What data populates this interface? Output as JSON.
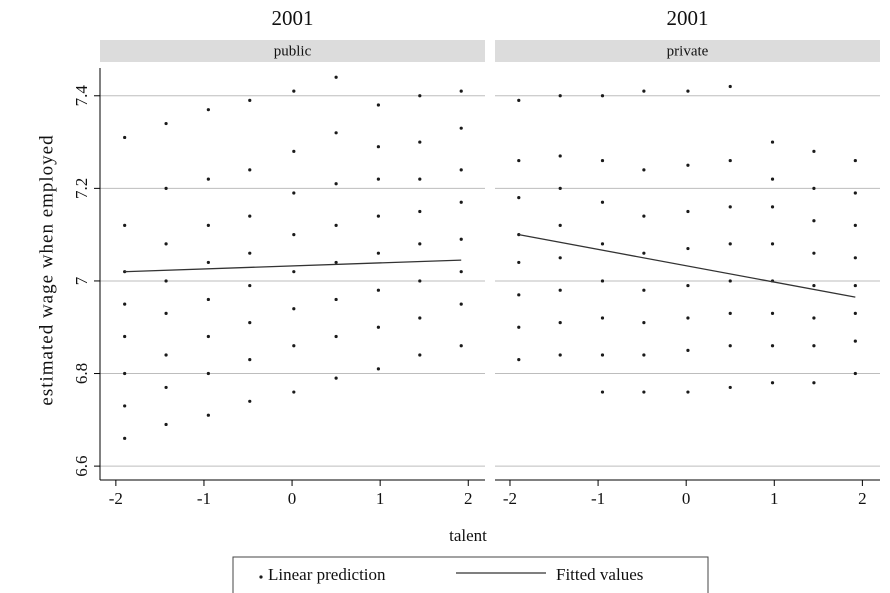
{
  "chart_data": [
    {
      "type": "scatter",
      "title": "2001",
      "subtitle": "public",
      "ylabel": "estimated wage when employed",
      "xlabel": "talent",
      "xlim": [
        -2.18,
        2.19
      ],
      "ylim": [
        6.57,
        7.46
      ],
      "xticks": [
        -2,
        -1,
        0,
        1,
        2
      ],
      "yticks": [
        6.6,
        6.8,
        7,
        7.2,
        7.4
      ],
      "grid": true,
      "series": [
        {
          "name": "Linear prediction",
          "type": "scatter",
          "color": "#1a1a1a",
          "x": [
            -1.9,
            -1.9,
            -1.9,
            -1.9,
            -1.9,
            -1.9,
            -1.9,
            -1.9,
            -1.43,
            -1.43,
            -1.43,
            -1.43,
            -1.43,
            -1.43,
            -1.43,
            -1.43,
            -0.95,
            -0.95,
            -0.95,
            -0.95,
            -0.95,
            -0.95,
            -0.95,
            -0.95,
            -0.48,
            -0.48,
            -0.48,
            -0.48,
            -0.48,
            -0.48,
            -0.48,
            -0.48,
            0.02,
            0.02,
            0.02,
            0.02,
            0.02,
            0.02,
            0.02,
            0.02,
            0.5,
            0.5,
            0.5,
            0.5,
            0.5,
            0.5,
            0.5,
            0.5,
            0.98,
            0.98,
            0.98,
            0.98,
            0.98,
            0.98,
            0.98,
            0.98,
            1.45,
            1.45,
            1.45,
            1.45,
            1.45,
            1.45,
            1.45,
            1.45,
            1.92,
            1.92,
            1.92,
            1.92,
            1.92,
            1.92,
            1.92,
            1.92
          ],
          "values": [
            6.66,
            6.73,
            6.8,
            6.88,
            6.95,
            7.02,
            7.12,
            7.31,
            6.69,
            6.77,
            6.84,
            6.93,
            7.0,
            7.08,
            7.2,
            7.34,
            6.71,
            6.8,
            6.88,
            6.96,
            7.04,
            7.12,
            7.22,
            7.37,
            6.74,
            6.83,
            6.91,
            6.99,
            7.06,
            7.14,
            7.24,
            7.39,
            6.76,
            6.86,
            6.94,
            7.02,
            7.1,
            7.19,
            7.28,
            7.41,
            6.79,
            6.88,
            6.96,
            7.04,
            7.12,
            7.21,
            7.32,
            7.44,
            6.81,
            6.9,
            6.98,
            7.06,
            7.14,
            7.22,
            7.29,
            7.38,
            6.84,
            6.92,
            7.0,
            7.08,
            7.15,
            7.22,
            7.3,
            7.4,
            6.86,
            6.95,
            7.02,
            7.09,
            7.17,
            7.24,
            7.33,
            7.41
          ]
        },
        {
          "name": "Fitted values",
          "type": "line",
          "color": "#333333",
          "x": [
            -1.9,
            1.92
          ],
          "values": [
            7.02,
            7.045
          ]
        }
      ]
    },
    {
      "type": "scatter",
      "title": "2001",
      "subtitle": "private",
      "xlim": [
        -2.17,
        2.2
      ],
      "ylim": [
        6.57,
        7.46
      ],
      "xticks": [
        -2,
        -1,
        0,
        1,
        2
      ],
      "yticks": [
        6.6,
        6.8,
        7,
        7.2,
        7.4
      ],
      "grid": true,
      "series": [
        {
          "type": "scatter",
          "color": "#1a1a1a",
          "x": [
            -1.9,
            -1.9,
            -1.9,
            -1.9,
            -1.9,
            -1.9,
            -1.9,
            -1.9,
            -1.43,
            -1.43,
            -1.43,
            -1.43,
            -1.43,
            -1.43,
            -1.43,
            -1.43,
            -0.95,
            -0.95,
            -0.95,
            -0.95,
            -0.95,
            -0.95,
            -0.95,
            -0.95,
            -0.48,
            -0.48,
            -0.48,
            -0.48,
            -0.48,
            -0.48,
            -0.48,
            -0.48,
            0.02,
            0.02,
            0.02,
            0.02,
            0.02,
            0.02,
            0.02,
            0.02,
            0.5,
            0.5,
            0.5,
            0.5,
            0.5,
            0.5,
            0.5,
            0.5,
            0.98,
            0.98,
            0.98,
            0.98,
            0.98,
            0.98,
            0.98,
            0.98,
            1.45,
            1.45,
            1.45,
            1.45,
            1.45,
            1.45,
            1.45,
            1.45,
            1.92,
            1.92,
            1.92,
            1.92,
            1.92,
            1.92,
            1.92,
            1.92
          ],
          "values": [
            6.83,
            6.9,
            6.97,
            7.04,
            7.1,
            7.18,
            7.26,
            7.39,
            6.84,
            6.91,
            6.98,
            7.05,
            7.12,
            7.2,
            7.27,
            7.4,
            6.76,
            6.84,
            6.92,
            7.0,
            7.08,
            7.17,
            7.26,
            7.4,
            6.76,
            6.84,
            6.91,
            6.98,
            7.06,
            7.14,
            7.24,
            7.41,
            6.76,
            6.85,
            6.92,
            6.99,
            7.07,
            7.15,
            7.25,
            7.41,
            6.77,
            6.86,
            6.93,
            7.0,
            7.08,
            7.16,
            7.26,
            7.42,
            6.78,
            6.86,
            6.93,
            7.0,
            7.08,
            7.16,
            7.22,
            7.3,
            6.78,
            6.86,
            6.92,
            6.99,
            7.06,
            7.13,
            7.2,
            7.28,
            6.8,
            6.87,
            6.93,
            6.99,
            7.05,
            7.12,
            7.19,
            7.26
          ]
        },
        {
          "type": "line",
          "color": "#333333",
          "x": [
            -1.9,
            1.92
          ],
          "values": [
            7.1,
            6.965
          ]
        }
      ]
    }
  ]
}
